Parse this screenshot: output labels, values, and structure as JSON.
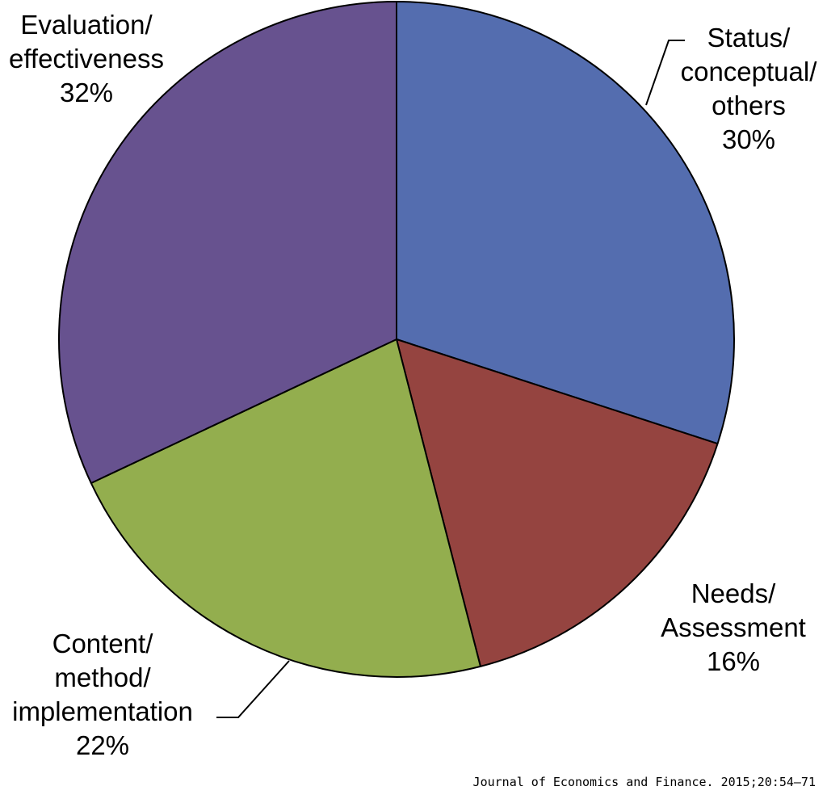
{
  "chart_data": {
    "type": "pie",
    "title": "",
    "start_angle_deg": 0,
    "direction": "clockwise",
    "slices": [
      {
        "lines": [
          "Status/",
          "conceptual/",
          "others"
        ],
        "value": 30,
        "value_label": "30%",
        "color": "#546daf"
      },
      {
        "lines": [
          "Needs/",
          "Assessment"
        ],
        "value": 16,
        "value_label": "16%",
        "color": "#954440"
      },
      {
        "lines": [
          "Content/",
          "method/",
          "implementation"
        ],
        "value": 22,
        "value_label": "22%",
        "color": "#93ae4e"
      },
      {
        "lines": [
          "Evaluation/",
          "effectiveness"
        ],
        "value": 32,
        "value_label": "32%",
        "color": "#67528f"
      }
    ],
    "legend": "none"
  },
  "source": "Journal of Economics and Finance. 2015;20:54–71"
}
